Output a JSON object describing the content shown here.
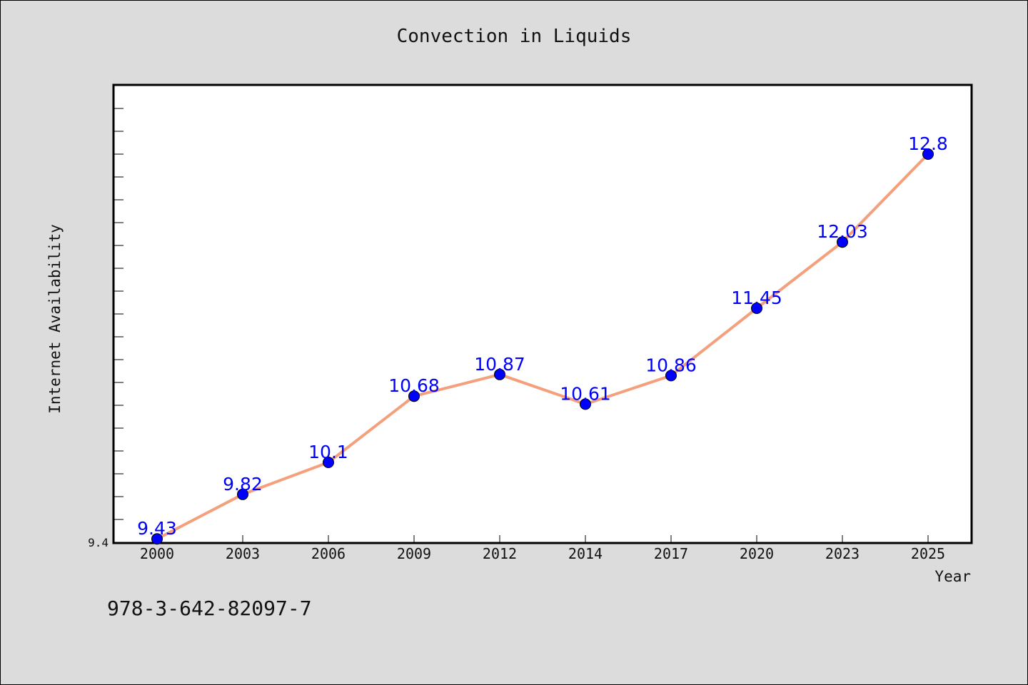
{
  "chart_data": {
    "type": "line",
    "title": "Convection in Liquids",
    "xlabel": "Year",
    "ylabel": "Internet Availability",
    "categories": [
      "2000",
      "2003",
      "2006",
      "2009",
      "2012",
      "2014",
      "2017",
      "2020",
      "2023",
      "2025"
    ],
    "values": [
      9.43,
      9.82,
      10.1,
      10.68,
      10.87,
      10.61,
      10.86,
      11.45,
      12.03,
      12.8
    ],
    "data_labels": [
      "9.43",
      "9.82",
      "10.1",
      "10.68",
      "10.87",
      "10.61",
      "10.86",
      "11.45",
      "12.03",
      "12.8"
    ],
    "y_tick_labels": [
      "9.4"
    ],
    "ylim": [
      9.4,
      13.4
    ],
    "grid": false,
    "legend": "none",
    "line_color": "#f4a07c",
    "marker_color": "#0000ff",
    "label_color": "#0000ff"
  },
  "footer": {
    "isbn": "978-3-642-82097-7"
  }
}
